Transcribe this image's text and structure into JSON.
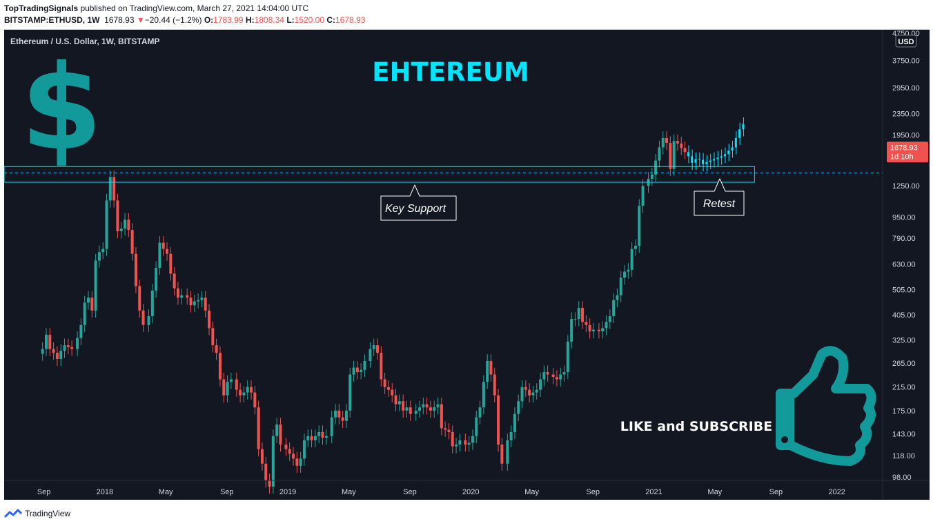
{
  "header": {
    "publisher": "TopTradingSignals",
    "published_on": " published on TradingView.com, March 27, 2021 14:04:00 UTC",
    "symbol": "BITSTAMP:ETHUSD, 1W",
    "price": "1678.93",
    "change_arrow": "▼",
    "change": "−20.44 (−1.2%)",
    "o_label": "O:",
    "o_val": "1783.99",
    "h_label": "H:",
    "h_val": "1808.34",
    "l_label": "L:",
    "l_val": "1520.00",
    "c_label": "C:",
    "c_val": "1678.93"
  },
  "chart_title": "Ethereum / U.S. Dollar, 1W, BITSTAMP",
  "currency": "USD",
  "colors": {
    "up": "#26a69a",
    "down": "#ef5350",
    "accent": "#00e5ff",
    "bg": "#131722",
    "icon": "#12999a"
  },
  "annotations": {
    "big_title": "EHTEREUM",
    "support_label": "Key Support",
    "retest_label": "Retest",
    "subscribe": "LIKE and SUBSCRIBE",
    "dollar": "$"
  },
  "price_tag": {
    "value": "1678.93",
    "countdown": "1d 10h"
  },
  "footer": {
    "brand": "TradingView"
  },
  "chart_data": {
    "type": "candlestick",
    "title": "Ethereum / U.S. Dollar, 1W, BITSTAMP",
    "y_scale": "log",
    "ylim": [
      95,
      4900
    ],
    "y_ticks": [
      98,
      118,
      143,
      175,
      215,
      265,
      325,
      405,
      505,
      630,
      790,
      950,
      1250,
      1950,
      2350,
      2950,
      3750,
      4750
    ],
    "y_tick_labels": [
      "98.00",
      "118.00",
      "143.00",
      "175.00",
      "215.00",
      "265.00",
      "325.00",
      "405.00",
      "505.00",
      "630.00",
      "790.00",
      "950.00",
      "1250.00",
      "1950.00",
      "2350.00",
      "2950.00",
      "3750.00",
      "4750.00"
    ],
    "x_ticks": [
      "Sep",
      "2018",
      "May",
      "Sep",
      "2019",
      "May",
      "Sep",
      "2020",
      "May",
      "Sep",
      "2021",
      "May",
      "Sep",
      "2022"
    ],
    "x_tick_dates": [
      2017.667,
      2018.0,
      2018.333,
      2018.667,
      2019.0,
      2019.333,
      2019.667,
      2020.0,
      2020.333,
      2020.667,
      2021.0,
      2021.333,
      2021.667,
      2022.0
    ],
    "x_range": [
      2017.45,
      2022.25
    ],
    "support_zone": {
      "low": 1290,
      "high": 1480,
      "line": 1400,
      "from": 2017.45,
      "to": 2021.55
    },
    "weekly_closes": [
      [
        2017.66,
        300
      ],
      [
        2017.68,
        340
      ],
      [
        2017.7,
        300
      ],
      [
        2017.72,
        290
      ],
      [
        2017.74,
        275
      ],
      [
        2017.76,
        295
      ],
      [
        2017.78,
        310
      ],
      [
        2017.8,
        305
      ],
      [
        2017.82,
        300
      ],
      [
        2017.85,
        330
      ],
      [
        2017.87,
        370
      ],
      [
        2017.89,
        450
      ],
      [
        2017.91,
        470
      ],
      [
        2017.93,
        420
      ],
      [
        2017.95,
        650
      ],
      [
        2017.97,
        700
      ],
      [
        2017.99,
        720
      ],
      [
        2018.01,
        1100
      ],
      [
        2018.03,
        1350
      ],
      [
        2018.05,
        1100
      ],
      [
        2018.07,
        840
      ],
      [
        2018.09,
        860
      ],
      [
        2018.11,
        930
      ],
      [
        2018.13,
        850
      ],
      [
        2018.15,
        690
      ],
      [
        2018.17,
        520
      ],
      [
        2018.19,
        420
      ],
      [
        2018.21,
        370
      ],
      [
        2018.24,
        400
      ],
      [
        2018.26,
        500
      ],
      [
        2018.28,
        610
      ],
      [
        2018.3,
        760
      ],
      [
        2018.32,
        720
      ],
      [
        2018.34,
        690
      ],
      [
        2018.36,
        580
      ],
      [
        2018.38,
        510
      ],
      [
        2018.4,
        470
      ],
      [
        2018.42,
        480
      ],
      [
        2018.45,
        470
      ],
      [
        2018.47,
        440
      ],
      [
        2018.49,
        455
      ],
      [
        2018.51,
        460
      ],
      [
        2018.53,
        470
      ],
      [
        2018.55,
        420
      ],
      [
        2018.57,
        360
      ],
      [
        2018.59,
        310
      ],
      [
        2018.61,
        290
      ],
      [
        2018.63,
        230
      ],
      [
        2018.65,
        200
      ],
      [
        2018.67,
        225
      ],
      [
        2018.69,
        230
      ],
      [
        2018.72,
        210
      ],
      [
        2018.74,
        200
      ],
      [
        2018.76,
        205
      ],
      [
        2018.78,
        215
      ],
      [
        2018.8,
        205
      ],
      [
        2018.82,
        180
      ],
      [
        2018.84,
        125
      ],
      [
        2018.86,
        110
      ],
      [
        2018.88,
        95
      ],
      [
        2018.9,
        90
      ],
      [
        2018.92,
        140
      ],
      [
        2018.94,
        155
      ],
      [
        2018.96,
        130
      ],
      [
        2018.99,
        125
      ],
      [
        2019.01,
        120
      ],
      [
        2019.03,
        115
      ],
      [
        2019.05,
        108
      ],
      [
        2019.07,
        115
      ],
      [
        2019.09,
        135
      ],
      [
        2019.11,
        140
      ],
      [
        2019.13,
        135
      ],
      [
        2019.15,
        140
      ],
      [
        2019.17,
        145
      ],
      [
        2019.19,
        138
      ],
      [
        2019.21,
        140
      ],
      [
        2019.24,
        165
      ],
      [
        2019.26,
        175
      ],
      [
        2019.28,
        165
      ],
      [
        2019.3,
        160
      ],
      [
        2019.32,
        175
      ],
      [
        2019.34,
        240
      ],
      [
        2019.36,
        255
      ],
      [
        2019.38,
        245
      ],
      [
        2019.4,
        250
      ],
      [
        2019.42,
        270
      ],
      [
        2019.45,
        300
      ],
      [
        2019.47,
        310
      ],
      [
        2019.49,
        290
      ],
      [
        2019.51,
        230
      ],
      [
        2019.53,
        215
      ],
      [
        2019.55,
        210
      ],
      [
        2019.57,
        200
      ],
      [
        2019.59,
        185
      ],
      [
        2019.61,
        190
      ],
      [
        2019.63,
        175
      ],
      [
        2019.65,
        180
      ],
      [
        2019.67,
        170
      ],
      [
        2019.7,
        175
      ],
      [
        2019.72,
        180
      ],
      [
        2019.74,
        185
      ],
      [
        2019.76,
        180
      ],
      [
        2019.78,
        175
      ],
      [
        2019.8,
        180
      ],
      [
        2019.82,
        185
      ],
      [
        2019.84,
        150
      ],
      [
        2019.86,
        148
      ],
      [
        2019.88,
        145
      ],
      [
        2019.9,
        128
      ],
      [
        2019.92,
        130
      ],
      [
        2019.94,
        135
      ],
      [
        2019.97,
        130
      ],
      [
        2019.99,
        132
      ],
      [
        2020.01,
        140
      ],
      [
        2020.03,
        165
      ],
      [
        2020.05,
        180
      ],
      [
        2020.07,
        225
      ],
      [
        2020.09,
        270
      ],
      [
        2020.11,
        240
      ],
      [
        2020.13,
        200
      ],
      [
        2020.15,
        130
      ],
      [
        2020.17,
        110
      ],
      [
        2020.2,
        135
      ],
      [
        2020.22,
        145
      ],
      [
        2020.24,
        170
      ],
      [
        2020.26,
        190
      ],
      [
        2020.28,
        215
      ],
      [
        2020.3,
        210
      ],
      [
        2020.32,
        200
      ],
      [
        2020.34,
        205
      ],
      [
        2020.36,
        210
      ],
      [
        2020.38,
        230
      ],
      [
        2020.4,
        245
      ],
      [
        2020.42,
        240
      ],
      [
        2020.45,
        235
      ],
      [
        2020.47,
        230
      ],
      [
        2020.49,
        240
      ],
      [
        2020.51,
        245
      ],
      [
        2020.53,
        320
      ],
      [
        2020.55,
        390
      ],
      [
        2020.57,
        390
      ],
      [
        2020.59,
        430
      ],
      [
        2020.61,
        380
      ],
      [
        2020.63,
        370
      ],
      [
        2020.65,
        350
      ],
      [
        2020.67,
        355
      ],
      [
        2020.7,
        350
      ],
      [
        2020.72,
        360
      ],
      [
        2020.74,
        380
      ],
      [
        2020.76,
        400
      ],
      [
        2020.78,
        460
      ],
      [
        2020.8,
        480
      ],
      [
        2020.82,
        560
      ],
      [
        2020.84,
        590
      ],
      [
        2020.86,
        600
      ],
      [
        2020.88,
        720
      ],
      [
        2020.9,
        740
      ],
      [
        2020.92,
        1050
      ],
      [
        2020.94,
        1250
      ],
      [
        2020.97,
        1330
      ],
      [
        2020.99,
        1380
      ],
      [
        2021.01,
        1560
      ],
      [
        2021.03,
        1750
      ],
      [
        2021.05,
        1900
      ],
      [
        2021.07,
        1820
      ],
      [
        2021.09,
        1450
      ],
      [
        2021.11,
        1850
      ],
      [
        2021.13,
        1810
      ],
      [
        2021.15,
        1740
      ],
      [
        2021.17,
        1680
      ]
    ],
    "projection_closes": [
      [
        2021.19,
        1620
      ],
      [
        2021.21,
        1530
      ],
      [
        2021.23,
        1580
      ],
      [
        2021.25,
        1570
      ],
      [
        2021.27,
        1510
      ],
      [
        2021.29,
        1540
      ],
      [
        2021.31,
        1560
      ],
      [
        2021.33,
        1580
      ],
      [
        2021.35,
        1600
      ],
      [
        2021.37,
        1620
      ],
      [
        2021.39,
        1650
      ],
      [
        2021.41,
        1700
      ],
      [
        2021.43,
        1750
      ],
      [
        2021.45,
        1900
      ],
      [
        2021.47,
        2050
      ],
      [
        2021.49,
        2150
      ]
    ]
  }
}
